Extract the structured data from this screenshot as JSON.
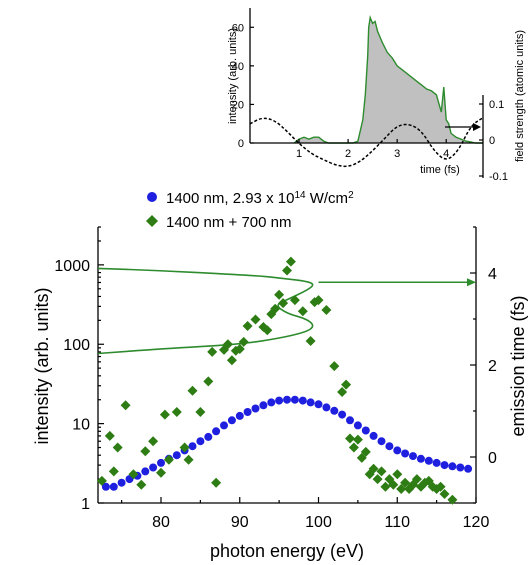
{
  "chart_data": [
    {
      "type": "area",
      "xlabel": "time (fs)",
      "ylabel": "intensity (arb. units)",
      "y2label": "field strength (atomic units)",
      "xlim": [
        0,
        4.75
      ],
      "ylim": [
        0,
        70
      ],
      "y2lim": [
        -0.1,
        0.1
      ],
      "x_ticks": [
        "1",
        "2",
        "3",
        "4"
      ],
      "y_ticks": [
        "0",
        "20",
        "40",
        "60"
      ],
      "y2_ticks": [
        "-0.1",
        "0",
        "0.1"
      ],
      "series": [
        {
          "style": "filled-area",
          "color": "#2e8b2e",
          "fill": "#c0c0c0",
          "x": [
            0.9,
            1.0,
            1.1,
            1.2,
            1.3,
            1.4,
            1.5,
            1.6,
            1.8,
            2.0,
            2.1,
            2.2,
            2.3,
            2.35,
            2.4,
            2.42,
            2.45,
            2.5,
            2.55,
            2.6,
            2.7,
            2.8,
            2.9,
            3.0,
            3.1,
            3.2,
            3.3,
            3.4,
            3.5,
            3.6,
            3.7,
            3.8,
            3.9,
            3.95,
            4.0,
            4.05,
            4.1,
            4.2,
            4.3,
            4.4,
            4.5,
            4.6,
            4.75
          ],
          "y": [
            0,
            2,
            3,
            2,
            3,
            3,
            1,
            0,
            0,
            0,
            0,
            1,
            12,
            25,
            45,
            60,
            65,
            62,
            63,
            58,
            52,
            47,
            44,
            40,
            38,
            36,
            34,
            32,
            30,
            28,
            27,
            25,
            16,
            29,
            12,
            10,
            5,
            3,
            2,
            1,
            0.5,
            0,
            0
          ]
        },
        {
          "style": "dashed",
          "axis": "right",
          "color": "#000000",
          "x": [
            0,
            0.25,
            0.5,
            0.75,
            1.0,
            1.25,
            1.5,
            1.75,
            2.0,
            2.25,
            2.5,
            2.75,
            3.0,
            3.25,
            3.5,
            3.75,
            4.0,
            4.25,
            4.5,
            4.75
          ],
          "y": [
            0.045,
            0.063,
            0.055,
            0.025,
            -0.01,
            -0.038,
            -0.055,
            -0.07,
            -0.075,
            -0.06,
            -0.03,
            0.005,
            0.04,
            0.045,
            0.025,
            -0.03,
            -0.06,
            -0.03,
            0.04,
            0.062
          ]
        }
      ]
    },
    {
      "type": "scatter",
      "xlabel": "photon energy (eV)",
      "ylabel": "intensity (arb. units)",
      "y2label": "emission time (fs)",
      "xlim": [
        72,
        120
      ],
      "ylim": [
        1,
        3000
      ],
      "yscale": "log",
      "y2lim": [
        -1,
        5
      ],
      "x_ticks": [
        "80",
        "90",
        "100",
        "110",
        "120"
      ],
      "y_ticks": [
        "1",
        "10",
        "100",
        "1000"
      ],
      "y2_ticks": [
        "0",
        "2",
        "4"
      ],
      "legend": {
        "placement": "top",
        "entries": [
          {
            "text": "1400 nm, 2.93 x 10",
            "sup1": "14",
            "mid": " W/cm",
            "sup2": "2"
          },
          {
            "text": "1400 nm + 700 nm"
          }
        ]
      },
      "series": [
        {
          "marker": "circle",
          "color": "#1f1fe0",
          "x": [
            73,
            74,
            75,
            76,
            77,
            78,
            79,
            80,
            81,
            82,
            83,
            84,
            85,
            86,
            87,
            88,
            89,
            90,
            91,
            92,
            93,
            94,
            95,
            96,
            97,
            98,
            99,
            100,
            101,
            102,
            103,
            104,
            105,
            106,
            107,
            108,
            109,
            110,
            111,
            112,
            113,
            114,
            115,
            116,
            117,
            118,
            119
          ],
          "y": [
            1.6,
            1.6,
            1.8,
            2.0,
            2.2,
            2.5,
            2.8,
            3.2,
            3.6,
            4.0,
            4.6,
            5.2,
            6.0,
            6.8,
            8.0,
            9.5,
            11,
            12.5,
            14,
            15.5,
            17,
            18.5,
            19.5,
            20,
            20,
            19.5,
            18.5,
            17.5,
            16,
            14.5,
            13,
            11,
            9.5,
            8.2,
            7.0,
            6.0,
            5.2,
            4.6,
            4.2,
            3.9,
            3.6,
            3.4,
            3.2,
            3.0,
            2.9,
            2.8,
            2.7
          ]
        },
        {
          "marker": "diamond",
          "color": "#2e7d14",
          "x": [
            72.5,
            73.5,
            74,
            74.5,
            75.5,
            76.5,
            77.5,
            78,
            79,
            80,
            80.5,
            81,
            82,
            83,
            83.5,
            84,
            85,
            86,
            86.5,
            87,
            88,
            88.5,
            89,
            89.5,
            90,
            90.5,
            91,
            92,
            93,
            93.5,
            94,
            94.5,
            95,
            95.5,
            96,
            96.5,
            97,
            98,
            99,
            99.5,
            100,
            101,
            102,
            103,
            103.5,
            104,
            104.5,
            105,
            105.5,
            106,
            106.5,
            107,
            107.5,
            108,
            108.5,
            109,
            109.5,
            110,
            110.5,
            111,
            111.5,
            112,
            112.5,
            113,
            113.5,
            114,
            114.5,
            115,
            115.5,
            116,
            117
          ],
          "y": [
            1.9,
            7,
            2.5,
            5,
            17,
            2.3,
            1.7,
            4.5,
            6,
            2.4,
            13,
            3.5,
            14,
            5,
            3.5,
            26,
            14,
            34,
            80,
            1.8,
            85,
            100,
            63,
            83,
            87,
            107,
            170,
            205,
            165,
            150,
            240,
            280,
            420,
            330,
            850,
            1100,
            360,
            260,
            110,
            340,
            360,
            270,
            53,
            25,
            31,
            6.5,
            5,
            6.3,
            3.7,
            4.4,
            2.3,
            2.7,
            2.0,
            2.5,
            1.6,
            2.0,
            1.7,
            2.3,
            1.5,
            1.8,
            1.5,
            1.7,
            2.0,
            1.6,
            1.8,
            1.9,
            1.6,
            1.5,
            1.6,
            1.3,
            1.1
          ]
        },
        {
          "style": "line",
          "axis": "right",
          "color": "#2e8b2e",
          "x": [
            72,
            80,
            88,
            93,
            96,
            98.5,
            99.5,
            98.5,
            96,
            94.5,
            96,
            98.5,
            99.5,
            98.5,
            95,
            90,
            80,
            72
          ],
          "y": [
            4.1,
            4.05,
            3.98,
            3.93,
            3.87,
            3.82,
            3.75,
            3.62,
            3.42,
            3.3,
            3.12,
            3.0,
            2.85,
            2.72,
            2.58,
            2.45,
            2.35,
            2.25
          ]
        },
        {
          "style": "arrow",
          "axis": "right",
          "color": "#2e8b2e",
          "x": [
            100,
            120
          ],
          "y": [
            3.8,
            3.8
          ]
        }
      ]
    }
  ]
}
